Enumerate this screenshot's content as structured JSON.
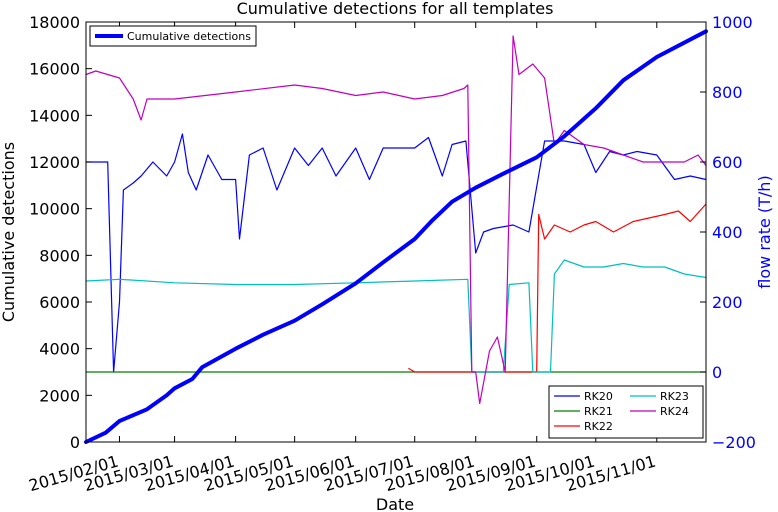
{
  "chart_data": {
    "type": "line",
    "title": "Cumulative detections for all templates",
    "xlabel": "Date",
    "ylabel_left": "Cumulative detections",
    "ylabel_right": "flow rate (T/h)",
    "x_range": [
      "2015-01-15",
      "2015-11-26"
    ],
    "ylim_left": [
      0,
      18000
    ],
    "ylim_right": [
      -200,
      1000
    ],
    "x_ticks": [
      "2015/02/01",
      "2015/03/01",
      "2015/04/01",
      "2015/05/01",
      "2015/06/01",
      "2015/07/01",
      "2015/08/01",
      "2015/09/01",
      "2015/10/01",
      "2015/11/01"
    ],
    "y_ticks_left": [
      "0",
      "2000",
      "4000",
      "6000",
      "8000",
      "10000",
      "12000",
      "14000",
      "16000",
      "18000"
    ],
    "y_ticks_right": [
      "−200",
      "0",
      "200",
      "400",
      "600",
      "800",
      "1000"
    ],
    "right_axis_color": "#0000ff",
    "grid": false,
    "legends": {
      "upper_left": {
        "placement": "top-left",
        "entries": [
          "Cumulative detections"
        ]
      },
      "lower_right": {
        "placement": "bottom-right",
        "columns": 2,
        "entries": [
          "RK20",
          "RK21",
          "RK22",
          "RK23",
          "RK24"
        ]
      }
    },
    "series": [
      {
        "name": "Cumulative detections",
        "axis": "left",
        "color": "#0000ff",
        "width": 4,
        "points": [
          [
            "2015-01-15",
            0
          ],
          [
            "2015-01-25",
            400
          ],
          [
            "2015-02-01",
            900
          ],
          [
            "2015-02-15",
            1400
          ],
          [
            "2015-02-25",
            2000
          ],
          [
            "2015-03-01",
            2300
          ],
          [
            "2015-03-10",
            2700
          ],
          [
            "2015-03-15",
            3200
          ],
          [
            "2015-04-01",
            4000
          ],
          [
            "2015-04-15",
            4600
          ],
          [
            "2015-05-01",
            5200
          ],
          [
            "2015-05-15",
            5900
          ],
          [
            "2015-06-01",
            6800
          ],
          [
            "2015-06-15",
            7700
          ],
          [
            "2015-07-01",
            8700
          ],
          [
            "2015-07-10",
            9500
          ],
          [
            "2015-07-20",
            10300
          ],
          [
            "2015-08-01",
            10900
          ],
          [
            "2015-08-15",
            11500
          ],
          [
            "2015-09-01",
            12200
          ],
          [
            "2015-09-15",
            13100
          ],
          [
            "2015-10-01",
            14300
          ],
          [
            "2015-10-15",
            15500
          ],
          [
            "2015-11-01",
            16500
          ],
          [
            "2015-11-26",
            17600
          ]
        ]
      },
      {
        "name": "RK20",
        "axis": "right",
        "color": "#0000ff",
        "width": 1.2,
        "points": [
          [
            "2015-01-15",
            600
          ],
          [
            "2015-01-26",
            600
          ],
          [
            "2015-01-29",
            0
          ],
          [
            "2015-02-01",
            200
          ],
          [
            "2015-02-03",
            520
          ],
          [
            "2015-02-08",
            540
          ],
          [
            "2015-02-12",
            560
          ],
          [
            "2015-02-18",
            600
          ],
          [
            "2015-02-25",
            560
          ],
          [
            "2015-03-01",
            600
          ],
          [
            "2015-03-05",
            680
          ],
          [
            "2015-03-08",
            570
          ],
          [
            "2015-03-12",
            520
          ],
          [
            "2015-03-18",
            620
          ],
          [
            "2015-03-25",
            550
          ],
          [
            "2015-04-01",
            550
          ],
          [
            "2015-04-03",
            380
          ],
          [
            "2015-04-08",
            620
          ],
          [
            "2015-04-15",
            640
          ],
          [
            "2015-04-22",
            520
          ],
          [
            "2015-05-01",
            640
          ],
          [
            "2015-05-08",
            590
          ],
          [
            "2015-05-15",
            640
          ],
          [
            "2015-05-22",
            560
          ],
          [
            "2015-06-01",
            640
          ],
          [
            "2015-06-08",
            550
          ],
          [
            "2015-06-15",
            640
          ],
          [
            "2015-06-22",
            640
          ],
          [
            "2015-07-01",
            640
          ],
          [
            "2015-07-08",
            670
          ],
          [
            "2015-07-15",
            560
          ],
          [
            "2015-07-20",
            650
          ],
          [
            "2015-07-27",
            660
          ],
          [
            "2015-08-01",
            340
          ],
          [
            "2015-08-05",
            400
          ],
          [
            "2015-08-10",
            410
          ],
          [
            "2015-08-20",
            420
          ],
          [
            "2015-08-28",
            400
          ],
          [
            "2015-09-05",
            660
          ],
          [
            "2015-09-15",
            660
          ],
          [
            "2015-09-25",
            650
          ],
          [
            "2015-10-01",
            570
          ],
          [
            "2015-10-08",
            630
          ],
          [
            "2015-10-15",
            620
          ],
          [
            "2015-10-22",
            630
          ],
          [
            "2015-11-01",
            620
          ],
          [
            "2015-11-10",
            550
          ],
          [
            "2015-11-18",
            560
          ],
          [
            "2015-11-26",
            550
          ]
        ]
      },
      {
        "name": "RK21",
        "axis": "right",
        "color": "#008000",
        "width": 1.2,
        "points": [
          [
            "2015-01-15",
            0
          ],
          [
            "2015-11-26",
            0
          ]
        ]
      },
      {
        "name": "RK22",
        "axis": "right",
        "color": "#ff0000",
        "width": 1.2,
        "points": [
          [
            "2015-06-28",
            10
          ],
          [
            "2015-07-01",
            0
          ],
          [
            "2015-08-05",
            0
          ],
          [
            "2015-08-25",
            0
          ],
          [
            "2015-09-01",
            0
          ],
          [
            "2015-09-02",
            450
          ],
          [
            "2015-09-05",
            380
          ],
          [
            "2015-09-10",
            420
          ],
          [
            "2015-09-18",
            400
          ],
          [
            "2015-09-25",
            420
          ],
          [
            "2015-10-01",
            430
          ],
          [
            "2015-10-10",
            400
          ],
          [
            "2015-10-20",
            430
          ],
          [
            "2015-10-28",
            440
          ],
          [
            "2015-11-05",
            450
          ],
          [
            "2015-11-12",
            460
          ],
          [
            "2015-11-18",
            430
          ],
          [
            "2015-11-26",
            480
          ]
        ]
      },
      {
        "name": "RK23",
        "axis": "right",
        "color": "#00bfbf",
        "width": 1.2,
        "points": [
          [
            "2015-01-15",
            260
          ],
          [
            "2015-02-01",
            265
          ],
          [
            "2015-03-01",
            255
          ],
          [
            "2015-04-01",
            250
          ],
          [
            "2015-05-01",
            250
          ],
          [
            "2015-06-01",
            255
          ],
          [
            "2015-07-01",
            260
          ],
          [
            "2015-07-28",
            265
          ],
          [
            "2015-07-30",
            0
          ],
          [
            "2015-08-10",
            0
          ],
          [
            "2015-08-15",
            0
          ],
          [
            "2015-08-18",
            250
          ],
          [
            "2015-08-28",
            255
          ],
          [
            "2015-08-30",
            0
          ],
          [
            "2015-09-08",
            0
          ],
          [
            "2015-09-10",
            280
          ],
          [
            "2015-09-15",
            320
          ],
          [
            "2015-09-25",
            300
          ],
          [
            "2015-10-05",
            300
          ],
          [
            "2015-10-15",
            310
          ],
          [
            "2015-10-25",
            300
          ],
          [
            "2015-11-05",
            300
          ],
          [
            "2015-11-15",
            280
          ],
          [
            "2015-11-26",
            270
          ]
        ]
      },
      {
        "name": "RK24",
        "axis": "right",
        "color": "#bf00bf",
        "width": 1.2,
        "points": [
          [
            "2015-01-15",
            850
          ],
          [
            "2015-01-20",
            860
          ],
          [
            "2015-02-01",
            840
          ],
          [
            "2015-02-08",
            780
          ],
          [
            "2015-02-12",
            720
          ],
          [
            "2015-02-15",
            780
          ],
          [
            "2015-03-01",
            780
          ],
          [
            "2015-04-01",
            800
          ],
          [
            "2015-05-01",
            820
          ],
          [
            "2015-05-15",
            810
          ],
          [
            "2015-06-01",
            790
          ],
          [
            "2015-06-15",
            800
          ],
          [
            "2015-07-01",
            780
          ],
          [
            "2015-07-15",
            790
          ],
          [
            "2015-07-26",
            810
          ],
          [
            "2015-07-28",
            820
          ],
          [
            "2015-07-30",
            0
          ],
          [
            "2015-08-01",
            0
          ],
          [
            "2015-08-03",
            -90
          ],
          [
            "2015-08-08",
            60
          ],
          [
            "2015-08-12",
            100
          ],
          [
            "2015-08-16",
            0
          ],
          [
            "2015-08-20",
            960
          ],
          [
            "2015-08-23",
            850
          ],
          [
            "2015-08-30",
            880
          ],
          [
            "2015-09-05",
            840
          ],
          [
            "2015-09-10",
            650
          ],
          [
            "2015-09-15",
            690
          ],
          [
            "2015-09-25",
            650
          ],
          [
            "2015-10-05",
            640
          ],
          [
            "2015-10-15",
            620
          ],
          [
            "2015-10-25",
            600
          ],
          [
            "2015-11-05",
            600
          ],
          [
            "2015-11-15",
            600
          ],
          [
            "2015-11-22",
            620
          ],
          [
            "2015-11-26",
            590
          ]
        ]
      }
    ]
  }
}
